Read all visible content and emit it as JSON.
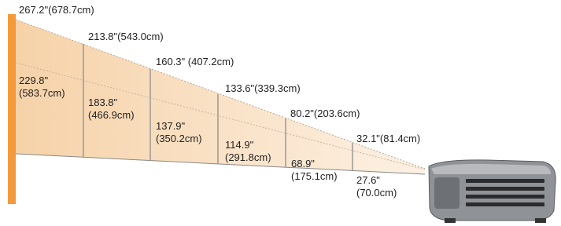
{
  "screens": [
    {
      "max_size": "267.2\"(678.7cm)",
      "min_size": [
        "229.8\"",
        "(583.7cm)"
      ]
    },
    {
      "max_size": "213.8\"(543.0cm)",
      "min_size": [
        "183.8\"",
        "(466.9cm)"
      ]
    },
    {
      "max_size": "160.3\" (407.2cm)",
      "min_size": [
        "137.9\"",
        "(350.2cm)"
      ]
    },
    {
      "max_size": "133.6\"(339.3cm)",
      "min_size": [
        "114.9\"",
        "(291.8cm)"
      ]
    },
    {
      "max_size": "80.2\"(203.6cm)",
      "min_size": [
        "68.9\"",
        "(175.1cm)"
      ]
    },
    {
      "max_size": "32.1\"(81.4cm)",
      "min_size": [
        "27.6\"",
        "(70.0cm)"
      ]
    }
  ]
}
